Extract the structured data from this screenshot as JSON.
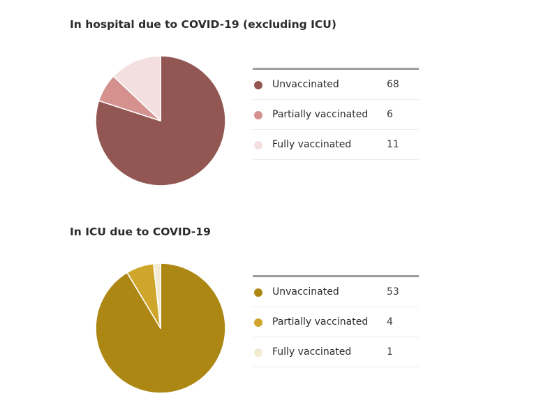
{
  "chart_data": [
    {
      "type": "pie",
      "title": "In hospital due to COVID-19 (excluding ICU)",
      "categories": [
        "Unvaccinated",
        "Partially vaccinated",
        "Fully vaccinated"
      ],
      "values": [
        68,
        6,
        11
      ],
      "colors": [
        "#935753",
        "#d4918d",
        "#f3dfe0"
      ],
      "legend_position": "right"
    },
    {
      "type": "pie",
      "title": "In ICU due to COVID-19",
      "categories": [
        "Unvaccinated",
        "Partially vaccinated",
        "Fully vaccinated"
      ],
      "values": [
        53,
        4,
        1
      ],
      "colors": [
        "#ad8714",
        "#cfa52c",
        "#f3ead2"
      ],
      "legend_position": "right"
    }
  ]
}
